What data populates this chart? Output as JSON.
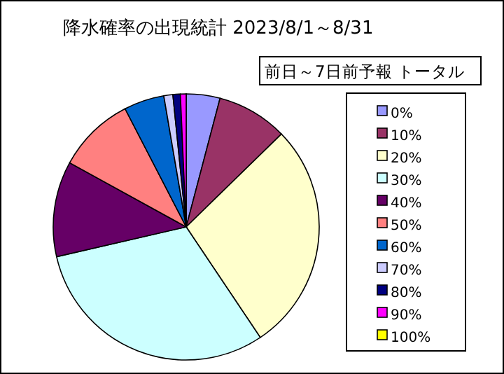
{
  "chart_data": {
    "type": "pie",
    "title": "降水確率の出現統計 2023/8/1～8/31",
    "subtitle": "前日～7日前予報 トータル",
    "categories": [
      "0%",
      "10%",
      "20%",
      "30%",
      "40%",
      "50%",
      "60%",
      "70%",
      "80%",
      "90%",
      "100%"
    ],
    "values": [
      4.1,
      8.6,
      27.9,
      30.8,
      11.6,
      9.4,
      4.9,
      1.1,
      0.9,
      0.7,
      0
    ],
    "colors": [
      "#9999ff",
      "#993366",
      "#ffffcc",
      "#ccffff",
      "#660066",
      "#ff8080",
      "#0066cc",
      "#ccccff",
      "#000080",
      "#ff00ff",
      "#ffff00"
    ],
    "legend": "right"
  }
}
